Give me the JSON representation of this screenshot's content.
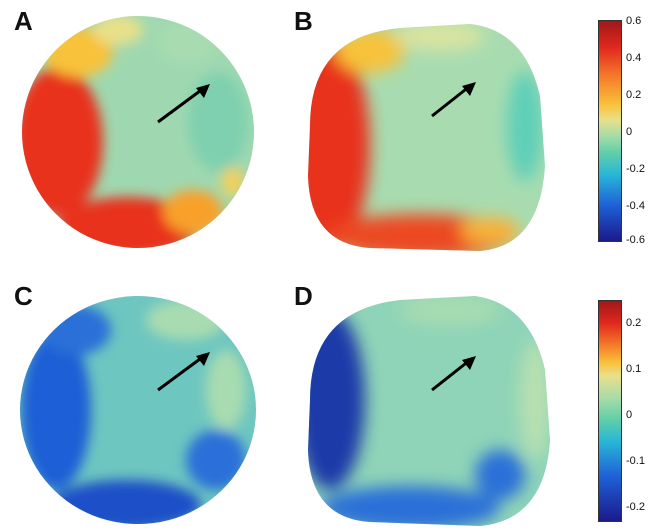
{
  "panels": [
    {
      "label": "A"
    },
    {
      "label": "B"
    },
    {
      "label": "C"
    },
    {
      "label": "D"
    }
  ],
  "colorbar_top": {
    "ticks": [
      "0.6",
      "0.4",
      "0.2",
      "0",
      "-0.2",
      "-0.4",
      "-0.6"
    ]
  },
  "colorbar_bottom": {
    "ticks": [
      "0.2",
      "0.1",
      "0",
      "-0.1",
      "-0.2"
    ]
  },
  "colors": {
    "jet": [
      "#1a1a8c",
      "#1f5fd6",
      "#27b6d8",
      "#5fcfa8",
      "#a8dca8",
      "#e8e08a",
      "#f8c23a",
      "#f57a2a",
      "#e0281e",
      "#a01818"
    ]
  }
}
